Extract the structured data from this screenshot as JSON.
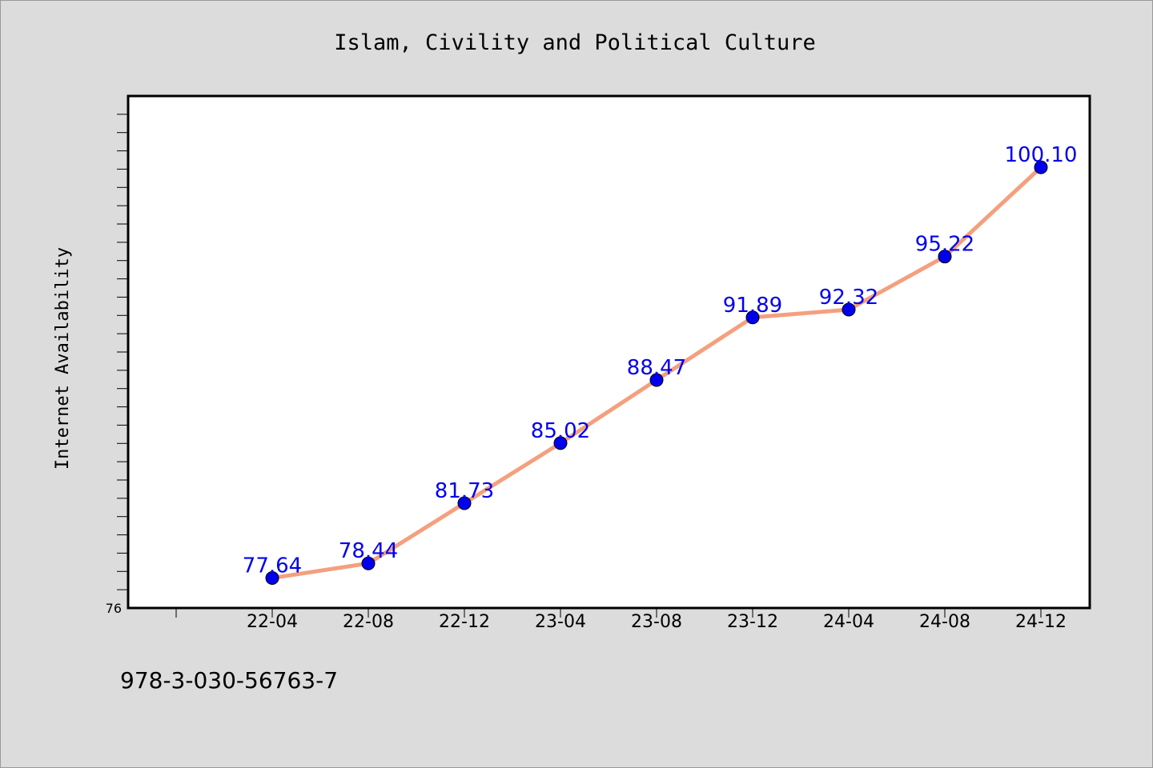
{
  "chart_data": {
    "type": "line",
    "title": "Islam, Civility and Political Culture",
    "xlabel": "",
    "ylabel": "Internet Availability",
    "x": [
      "22-04",
      "22-08",
      "22-12",
      "23-04",
      "23-08",
      "23-12",
      "24-04",
      "24-08",
      "24-12"
    ],
    "series": [
      {
        "values": [
          77.64,
          78.44,
          81.73,
          85.02,
          88.47,
          91.89,
          92.32,
          95.22,
          100.1
        ],
        "point_labels": [
          "77.64",
          "78.44",
          "81.73",
          "85.02",
          "88.47",
          "91.89",
          "92.32",
          "95.22",
          "100.10"
        ]
      }
    ],
    "ylim": [
      76,
      104
    ],
    "y_tick_labels": [
      "76"
    ],
    "grid": false,
    "colors": {
      "line": "#f4a07e",
      "marker": "#0000ee",
      "label": "#0000ee"
    }
  },
  "footer": {
    "text": "978-3-030-56763-7"
  }
}
